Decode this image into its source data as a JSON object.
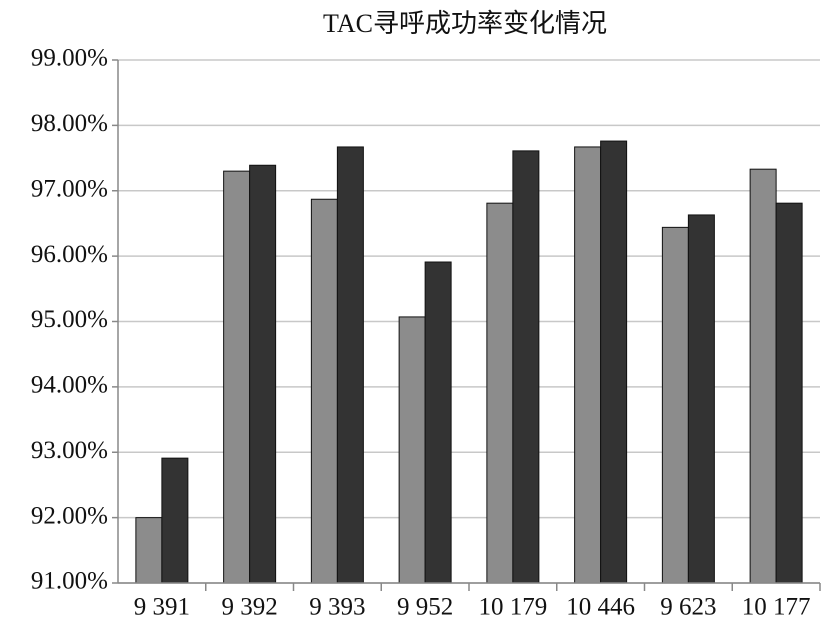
{
  "chart_data": {
    "type": "bar",
    "title": "TAC寻呼成功率变化情况",
    "categories": [
      "9 391",
      "9 392",
      "9 393",
      "9 952",
      "10 179",
      "10 446",
      "9 623",
      "10 177"
    ],
    "series": [
      {
        "color": "#8c8c8c",
        "values": [
          92.0,
          97.3,
          96.87,
          95.07,
          96.81,
          97.67,
          96.44,
          97.33
        ]
      },
      {
        "color": "#333333",
        "values": [
          92.91,
          97.39,
          97.67,
          95.91,
          97.61,
          97.76,
          96.63,
          96.81
        ]
      }
    ],
    "ylim": [
      91,
      99
    ],
    "yticks": [
      {
        "value": 91,
        "label": "91.00%"
      },
      {
        "value": 92,
        "label": "92.00%"
      },
      {
        "value": 93,
        "label": "93.00%"
      },
      {
        "value": 94,
        "label": "94.00%"
      },
      {
        "value": 95,
        "label": "95.00%"
      },
      {
        "value": 96,
        "label": "96.00%"
      },
      {
        "value": 97,
        "label": "97.00%"
      },
      {
        "value": 98,
        "label": "98.00%"
      },
      {
        "value": 99,
        "label": "99.00%"
      }
    ],
    "grid": true
  }
}
